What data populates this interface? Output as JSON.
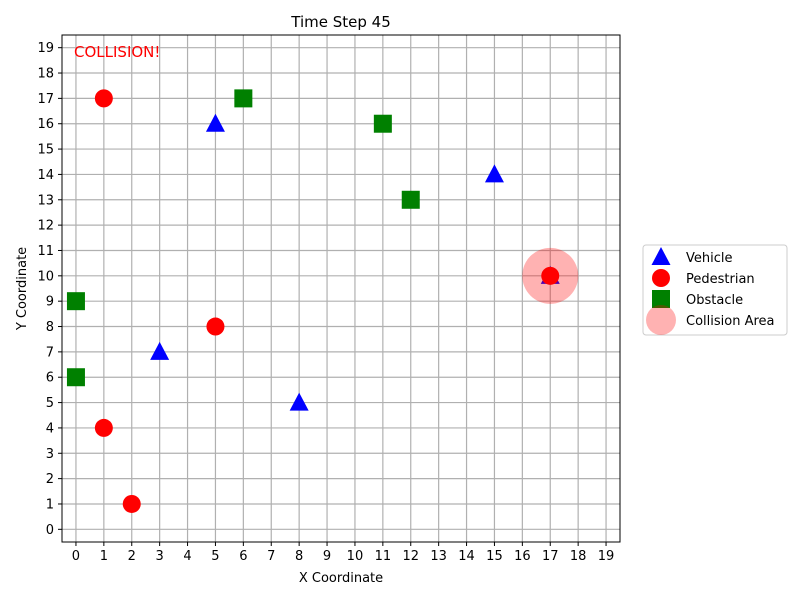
{
  "chart_data": {
    "type": "scatter",
    "title": "Time Step 45",
    "xlabel": "X Coordinate",
    "ylabel": "Y Coordinate",
    "xlim": [
      -0.5,
      19.5
    ],
    "ylim": [
      -0.5,
      19.5
    ],
    "xticks": [
      0,
      1,
      2,
      3,
      4,
      5,
      6,
      7,
      8,
      9,
      10,
      11,
      12,
      13,
      14,
      15,
      16,
      17,
      18,
      19
    ],
    "yticks": [
      0,
      1,
      2,
      3,
      4,
      5,
      6,
      7,
      8,
      9,
      10,
      11,
      12,
      13,
      14,
      15,
      16,
      17,
      18,
      19
    ],
    "grid": true,
    "legend_position": "right",
    "annotation": {
      "text": "COLLISION!",
      "color": "#ff0000"
    },
    "series": [
      {
        "name": "Vehicle",
        "marker": "triangle",
        "color": "#0000ff",
        "points": [
          [
            5,
            16
          ],
          [
            15,
            14
          ],
          [
            3,
            7
          ],
          [
            8,
            5
          ],
          [
            17,
            10
          ]
        ]
      },
      {
        "name": "Pedestrian",
        "marker": "circle",
        "color": "#ff0000",
        "points": [
          [
            1,
            17
          ],
          [
            5,
            8
          ],
          [
            1,
            4
          ],
          [
            2,
            1
          ],
          [
            17,
            10
          ]
        ]
      },
      {
        "name": "Obstacle",
        "marker": "square",
        "color": "#008000",
        "points": [
          [
            6,
            17
          ],
          [
            11,
            16
          ],
          [
            12,
            13
          ],
          [
            0,
            9
          ],
          [
            0,
            6
          ]
        ]
      }
    ],
    "collision_areas": {
      "name": "Collision Area",
      "color": "#ff0000",
      "opacity": 0.3,
      "points": [
        [
          17,
          10
        ]
      ]
    }
  }
}
